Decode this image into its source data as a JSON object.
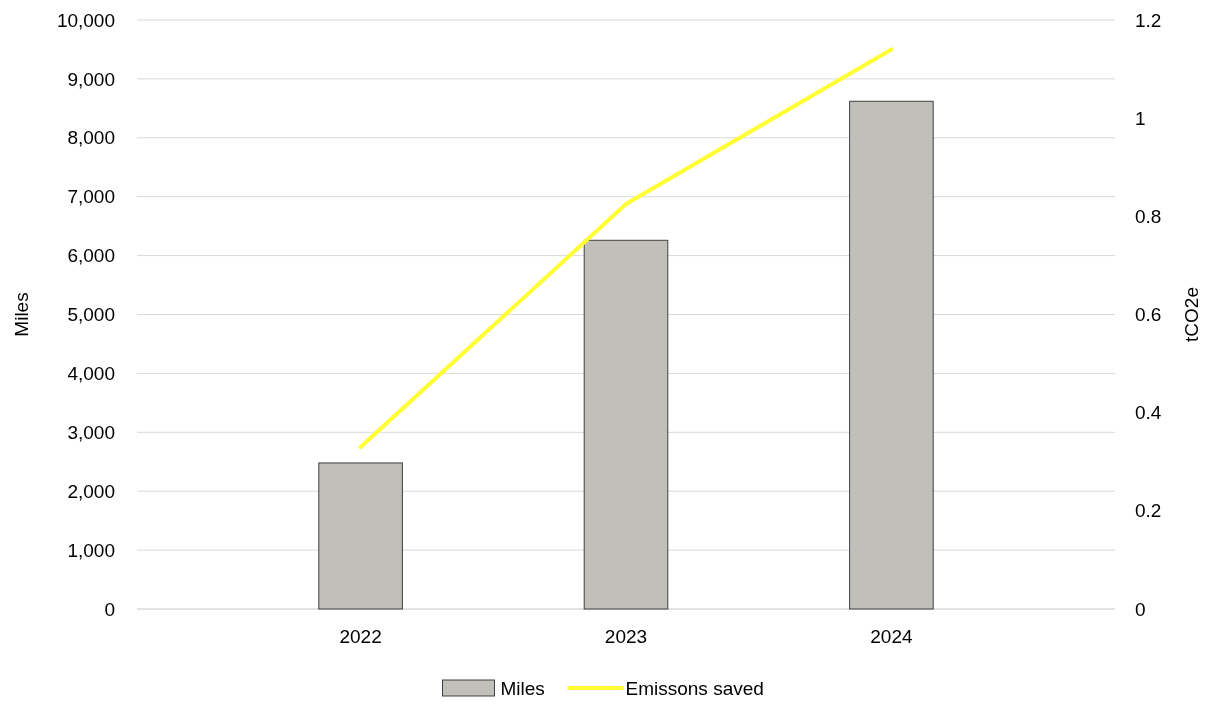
{
  "chart_data": {
    "type": "bar",
    "categories": [
      "2022",
      "2023",
      "2024"
    ],
    "series": [
      {
        "name": "Miles",
        "color": "#c0bfba",
        "values": [
          2480,
          6260,
          8620
        ]
      },
      {
        "name": "Emissons saved",
        "type": "line",
        "axis": "y2",
        "color": "#ffff33",
        "values": [
          0.33,
          0.825,
          1.14
        ]
      }
    ],
    "ylabel": "Miles",
    "y2label": "tCO2e",
    "ylim": [
      0,
      10000
    ],
    "yticks": [
      0,
      {
        "value": 1000,
        "label": "1,000"
      },
      {
        "value": 2000,
        "label": "2,000"
      },
      {
        "value": 3000,
        "label": "3,000"
      },
      {
        "value": 4000,
        "label": "4,000"
      },
      {
        "value": 5000,
        "label": "5,000"
      },
      {
        "value": 6000,
        "label": "6,000"
      },
      {
        "value": 7000,
        "label": "7,000"
      },
      {
        "value": 8000,
        "label": "8,000"
      },
      {
        "value": 9000,
        "label": "9,000"
      },
      {
        "value": 10000,
        "label": "10,000"
      }
    ],
    "y2lim": [
      0,
      1.2
    ],
    "y2ticks": [
      0,
      0.2,
      0.4,
      0.6,
      0.8,
      1,
      1.2
    ],
    "grid": "y",
    "legend": "bottom",
    "line_style": "solid",
    "marker": "none"
  }
}
